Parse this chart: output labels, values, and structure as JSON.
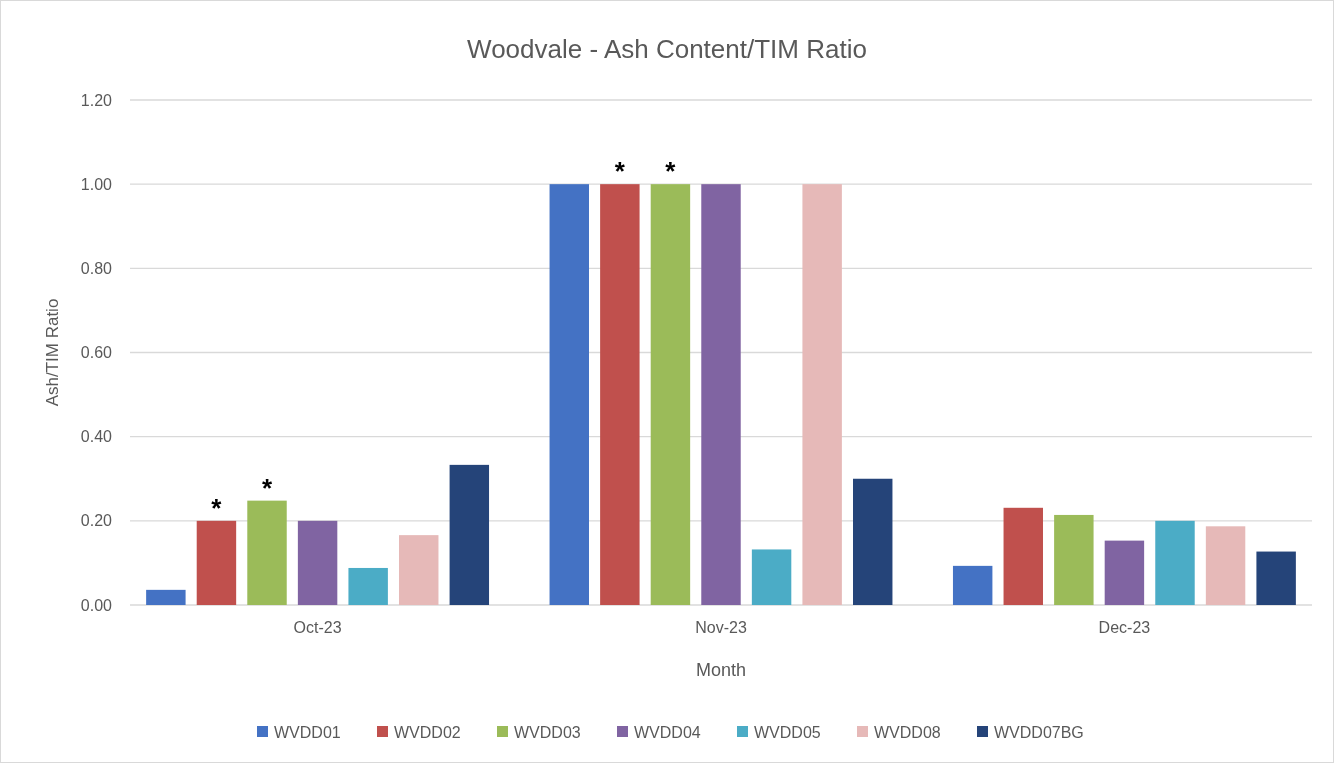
{
  "chart_data": {
    "type": "bar",
    "title": "Woodvale - Ash Content/TIM Ratio",
    "xlabel": "Month",
    "ylabel": "Ash/TIM Ratio",
    "categories": [
      "Oct-23",
      "Nov-23",
      "Dec-23"
    ],
    "series": [
      {
        "name": "WVDD01",
        "color": "#4472c4",
        "values": [
          0.036,
          1.0,
          0.093
        ]
      },
      {
        "name": "WVDD02",
        "color": "#c0504d",
        "values": [
          0.2,
          1.0,
          0.231
        ],
        "value_labels": [
          "*",
          "*",
          null
        ]
      },
      {
        "name": "WVDD03",
        "color": "#9bbb59",
        "values": [
          0.248,
          1.0,
          0.214
        ],
        "value_labels": [
          "*",
          "*",
          null
        ]
      },
      {
        "name": "WVDD04",
        "color": "#8064a2",
        "values": [
          0.2,
          1.0,
          0.153
        ]
      },
      {
        "name": "WVDD05",
        "color": "#4bacc6",
        "values": [
          0.088,
          0.132,
          0.2
        ]
      },
      {
        "name": "WVDD08",
        "color": "#e6b9b8",
        "values": [
          0.166,
          1.0,
          0.187
        ]
      },
      {
        "name": "WVDD07BG",
        "color": "#254479",
        "values": [
          0.333,
          0.3,
          0.127
        ]
      }
    ],
    "ylim": [
      0,
      1.2
    ],
    "yticks": [
      {
        "value": 0,
        "label": "0.00"
      },
      {
        "value": 0.2,
        "label": "0.20"
      },
      {
        "value": 0.4,
        "label": "0.40"
      },
      {
        "value": 0.6,
        "label": "0.60"
      },
      {
        "value": 0.8,
        "label": "0.80"
      },
      {
        "value": 1.0,
        "label": "1.00"
      },
      {
        "value": 1.2,
        "label": "1.20"
      }
    ],
    "grid": "y",
    "legend": "bottom"
  }
}
